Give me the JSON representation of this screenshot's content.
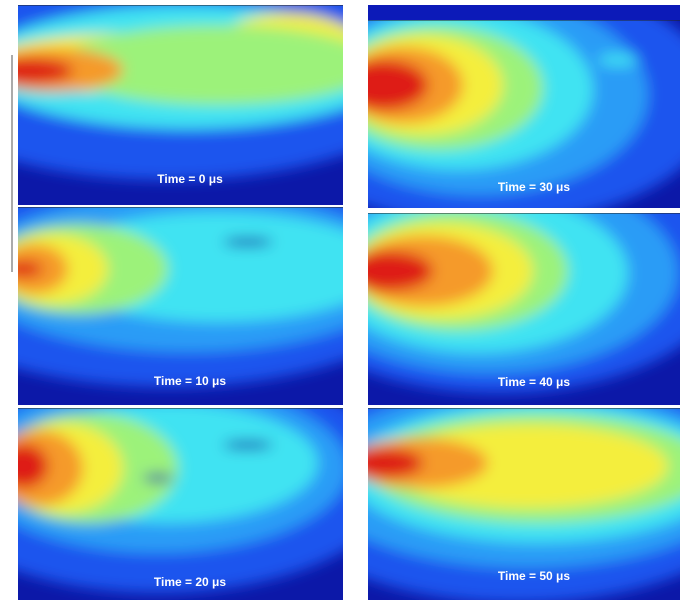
{
  "panels": [
    {
      "label": "Time =  0 μs"
    },
    {
      "label": "Time = 10 μs"
    },
    {
      "label": "Time = 20 μs"
    },
    {
      "label": "Time = 30 μs"
    },
    {
      "label": "Time = 40 μs"
    },
    {
      "label": "Time = 50 μs"
    }
  ]
}
